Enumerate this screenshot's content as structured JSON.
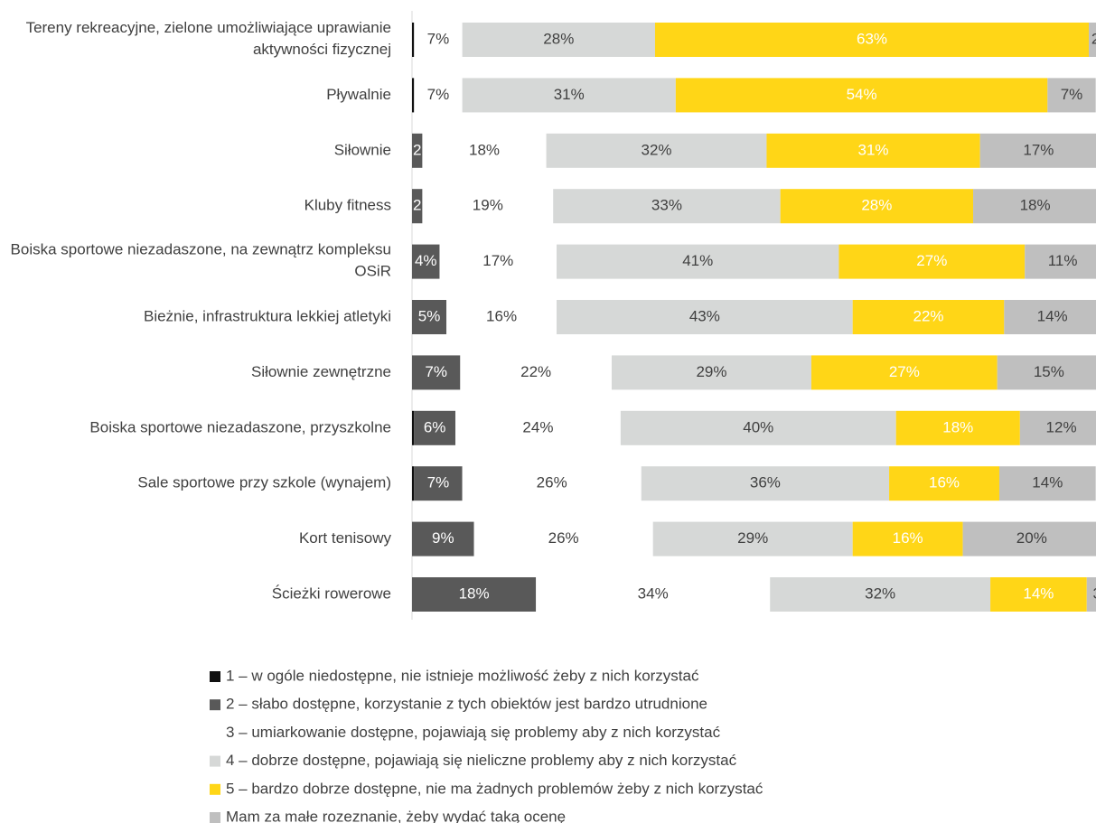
{
  "chart_data": {
    "type": "stacked-bar-horizontal",
    "categories": [
      "Tereny rekreacyjne, zielone umożliwiające uprawianie aktywności fizycznej",
      "Pływalnie",
      "Siłownie",
      "Kluby fitness",
      "Boiska sportowe niezadaszone, na zewnątrz kompleksu OSiR",
      "Bieżnie, infrastruktura lekkiej atletyki",
      "Siłownie zewnętrzne",
      "Boiska sportowe niezadaszone, przyszkolne",
      "Sale sportowe przy szkole (wynajem)",
      "Kort tenisowy",
      "Ścieżki rowerowe"
    ],
    "xlim": [
      0,
      100
    ],
    "series": [
      {
        "name": "1 – w ogóle niedostępne, nie istnieje możliwość żeby z nich korzystać",
        "color": "#111111",
        "label_color": "#ffffff",
        "values": [
          0.3,
          0.3,
          0,
          0,
          0,
          0,
          0,
          0.3,
          0.3,
          0,
          0
        ],
        "value_labels": [
          null,
          null,
          null,
          null,
          null,
          null,
          null,
          null,
          null,
          null,
          null
        ]
      },
      {
        "name": "2 – słabo dostępne, korzystanie z tych obiektów jest bardzo utrudnione",
        "color": "#595959",
        "label_color": "#ffffff",
        "values": [
          0,
          0,
          1.5,
          1.5,
          4,
          5,
          7,
          6,
          7,
          9,
          18
        ],
        "value_labels": [
          null,
          null,
          "2",
          "2",
          "4%",
          "5%",
          "7%",
          "6%",
          "7%",
          "9%",
          "18%"
        ]
      },
      {
        "name": "3 – umiarkowanie dostępne, pojawiają się problemy aby z nich korzystać",
        "color": "#ffffff",
        "label_color": "#404040",
        "values": [
          7,
          7,
          18,
          19,
          17,
          16,
          22,
          24,
          26,
          26,
          34
        ],
        "value_labels": [
          "7%",
          "7%",
          "18%",
          "19%",
          "17%",
          "16%",
          "22%",
          "24%",
          "26%",
          "26%",
          "34%"
        ]
      },
      {
        "name": "4 – dobrze dostępne, pojawiają się nieliczne problemy aby z nich korzystać",
        "color": "#d6d8d7",
        "label_color": "#404040",
        "values": [
          28,
          31,
          32,
          33,
          41,
          43,
          29,
          40,
          36,
          29,
          32
        ],
        "value_labels": [
          "28%",
          "31%",
          "32%",
          "33%",
          "41%",
          "43%",
          "29%",
          "40%",
          "36%",
          "29%",
          "32%"
        ]
      },
      {
        "name": "5 – bardzo dobrze dostępne, nie ma żadnych problemów żeby z nich korzystać",
        "color": "#ffd617",
        "label_color": "#ffffff",
        "values": [
          63,
          54,
          31,
          28,
          27,
          22,
          27,
          18,
          16,
          16,
          14
        ],
        "value_labels": [
          "63%",
          "54%",
          "31%",
          "28%",
          "27%",
          "22%",
          "27%",
          "18%",
          "16%",
          "16%",
          "14%"
        ]
      },
      {
        "name": "Mam za małe rozeznanie, żeby wydać taką ocenę",
        "color": "#bfbfbf",
        "label_color": "#404040",
        "values": [
          2,
          7,
          17,
          18,
          11,
          14,
          15,
          12,
          14,
          20,
          3
        ],
        "value_labels": [
          "2",
          "7%",
          "17%",
          "18%",
          "11%",
          "14%",
          "15%",
          "12%",
          "14%",
          "20%",
          "3"
        ]
      }
    ]
  }
}
